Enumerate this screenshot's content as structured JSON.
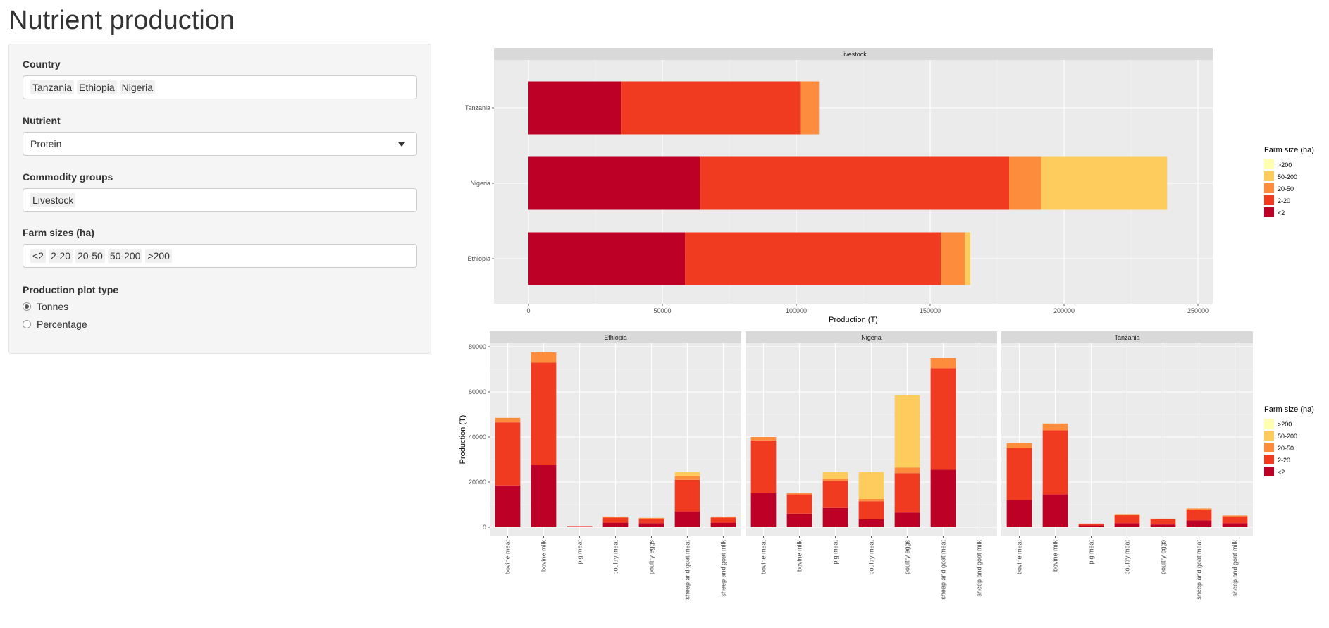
{
  "page": {
    "title": "Nutrient production"
  },
  "controls": {
    "country": {
      "label": "Country",
      "selected": [
        "Tanzania",
        "Ethiopia",
        "Nigeria"
      ]
    },
    "nutrient": {
      "label": "Nutrient",
      "selected": "Protein"
    },
    "commodity": {
      "label": "Commodity groups",
      "selected": [
        "Livestock"
      ]
    },
    "farm_sizes": {
      "label": "Farm sizes (ha)",
      "selected": [
        "<2",
        "2-20",
        "20-50",
        "50-200",
        ">200"
      ]
    },
    "plot_type": {
      "label": "Production plot type",
      "options": [
        "Tonnes",
        "Percentage"
      ],
      "selected": "Tonnes"
    }
  },
  "colors": {
    "<2": "#bd0026",
    "2-20": "#f03b20",
    "20-50": "#fd8d3c",
    "50-200": "#fecc5c",
    ">200": "#ffffb2",
    "panel_bg": "#ebebeb",
    "strip_bg": "#d9d9d9"
  },
  "chart_data": [
    {
      "type": "bar",
      "orientation": "horizontal",
      "stacked": true,
      "facet": "Livestock",
      "categories": [
        "Tanzania",
        "Nigeria",
        "Ethiopia"
      ],
      "series": [
        {
          "name": "<2",
          "values": [
            34500,
            64000,
            58500
          ]
        },
        {
          "name": "2-20",
          "values": [
            67000,
            115500,
            95500
          ]
        },
        {
          "name": "20-50",
          "values": [
            7000,
            12000,
            9000
          ]
        },
        {
          "name": "50-200",
          "values": [
            0,
            47000,
            2000
          ]
        },
        {
          "name": ">200",
          "values": [
            0,
            0,
            0
          ]
        }
      ],
      "xlabel": "Production (T)",
      "ylabel": "",
      "xlim": [
        0,
        250000
      ],
      "xticks": [
        "0",
        "50000",
        "100000",
        "150000",
        "200000",
        "250000"
      ],
      "grid": true,
      "legend": {
        "title": "Farm size (ha)",
        "entries": [
          ">200",
          "50-200",
          "20-50",
          "2-20",
          "<2"
        ],
        "position": "right"
      }
    },
    {
      "type": "bar",
      "stacked": true,
      "facets": [
        "Ethiopia",
        "Nigeria",
        "Tanzania"
      ],
      "categories": [
        "bovine meat",
        "bovine milk",
        "pig meat",
        "poultry meat",
        "poultry eggs",
        "sheep and goat meat",
        "sheep and goat milk"
      ],
      "panels": [
        {
          "facet": "Ethiopia",
          "series": [
            {
              "name": "<2",
              "values": [
                18500,
                27500,
                300,
                2000,
                1800,
                7000,
                2000
              ]
            },
            {
              "name": "2-20",
              "values": [
                28000,
                45500,
                200,
                2200,
                1800,
                14000,
                2200
              ]
            },
            {
              "name": "20-50",
              "values": [
                2000,
                4500,
                0,
                500,
                500,
                1500,
                500
              ]
            },
            {
              "name": "50-200",
              "values": [
                0,
                0,
                0,
                0,
                0,
                2000,
                0
              ]
            },
            {
              "name": ">200",
              "values": [
                0,
                0,
                0,
                0,
                0,
                0,
                0
              ]
            }
          ]
        },
        {
          "facet": "Nigeria",
          "series": [
            {
              "name": "<2",
              "values": [
                15000,
                6000,
                8500,
                3500,
                6500,
                25500,
                0
              ]
            },
            {
              "name": "2-20",
              "values": [
                23500,
                8500,
                12000,
                8000,
                17500,
                45000,
                0
              ]
            },
            {
              "name": "20-50",
              "values": [
                1500,
                500,
                1000,
                1000,
                2500,
                4500,
                0
              ]
            },
            {
              "name": "50-200",
              "values": [
                0,
                0,
                3000,
                12000,
                32000,
                0,
                0
              ]
            },
            {
              "name": ">200",
              "values": [
                0,
                0,
                0,
                0,
                0,
                0,
                0
              ]
            }
          ]
        },
        {
          "facet": "Tanzania",
          "series": [
            {
              "name": "<2",
              "values": [
                12000,
                14500,
                800,
                1800,
                1200,
                3000,
                1800
              ]
            },
            {
              "name": "2-20",
              "values": [
                23000,
                28500,
                800,
                3500,
                2300,
                4500,
                3000
              ]
            },
            {
              "name": "20-50",
              "values": [
                2500,
                3000,
                0,
                500,
                300,
                800,
                400
              ]
            },
            {
              "name": "50-200",
              "values": [
                0,
                0,
                0,
                0,
                0,
                0,
                0
              ]
            },
            {
              "name": ">200",
              "values": [
                0,
                0,
                0,
                0,
                0,
                0,
                0
              ]
            }
          ]
        }
      ],
      "xlabel": "",
      "ylabel": "Production (T)",
      "ylim": [
        0,
        80000
      ],
      "yticks": [
        "0",
        "20000",
        "40000",
        "60000",
        "80000"
      ],
      "grid": true,
      "legend": {
        "title": "Farm size (ha)",
        "entries": [
          ">200",
          "50-200",
          "20-50",
          "2-20",
          "<2"
        ],
        "position": "right"
      }
    }
  ]
}
